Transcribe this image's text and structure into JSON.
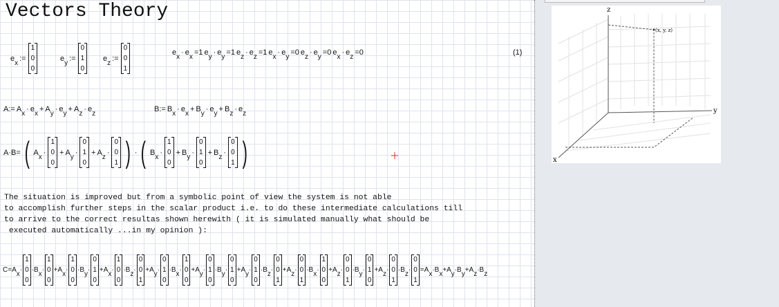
{
  "title": "Vectors Theory",
  "definitions": [
    [
      {
        "base": "e",
        "sub": "x"
      },
      ":=",
      {
        "matrix": [
          "1",
          "0",
          "0"
        ]
      }
    ],
    [
      {
        "base": "e",
        "sub": "y"
      },
      ":=",
      {
        "matrix": [
          "0",
          "1",
          "0"
        ]
      }
    ],
    [
      {
        "base": "e",
        "sub": "z"
      },
      ":=",
      {
        "matrix": [
          "0",
          "0",
          "1"
        ]
      }
    ]
  ],
  "dot_products": [
    {
      "base": "e",
      "sub": "x"
    },
    "·",
    {
      "base": "e",
      "sub": "x"
    },
    "=1",
    {
      "base": "e",
      "sub": "y"
    },
    "·",
    {
      "base": "e",
      "sub": "y"
    },
    "=1",
    {
      "base": "e",
      "sub": "z"
    },
    "·",
    {
      "base": "e",
      "sub": "z"
    },
    "=1",
    {
      "base": "e",
      "sub": "x"
    },
    "·",
    {
      "base": "e",
      "sub": "y"
    },
    "=0",
    {
      "base": "e",
      "sub": "z"
    },
    "·",
    {
      "base": "e",
      "sub": "y"
    },
    "=0",
    {
      "base": "e",
      "sub": "x"
    },
    "·",
    {
      "base": "e",
      "sub": "z"
    },
    "=0"
  ],
  "equation_number": "(1)",
  "a_definition": [
    "A:=",
    {
      "base": "A",
      "sub": "x"
    },
    "·",
    {
      "base": "e",
      "sub": "x"
    },
    "+",
    {
      "base": "A",
      "sub": "y"
    },
    "·",
    {
      "base": "e",
      "sub": "y"
    },
    "+",
    {
      "base": "A",
      "sub": "z"
    },
    "·",
    {
      "base": "e",
      "sub": "z"
    }
  ],
  "b_definition": [
    "B:=",
    {
      "base": "B",
      "sub": "x"
    },
    "·",
    {
      "base": "e",
      "sub": "x"
    },
    "+",
    {
      "base": "B",
      "sub": "y"
    },
    "·",
    {
      "base": "e",
      "sub": "y"
    },
    "+",
    {
      "base": "B",
      "sub": "z"
    },
    "·",
    {
      "base": "e",
      "sub": "z"
    }
  ],
  "ab_expression": [
    "A·B=",
    "(",
    {
      "base": "A",
      "sub": "x"
    },
    "·",
    {
      "matrix": [
        "1",
        "0",
        "0"
      ]
    },
    "+",
    {
      "base": "A",
      "sub": "y"
    },
    "·",
    {
      "matrix": [
        "0",
        "1",
        "0"
      ]
    },
    "+",
    {
      "base": "A",
      "sub": "z"
    },
    "·",
    {
      "matrix": [
        "0",
        "0",
        "1"
      ]
    },
    ")",
    "·",
    "(",
    {
      "base": "B",
      "sub": "x"
    },
    "·",
    {
      "matrix": [
        "1",
        "0",
        "0"
      ]
    },
    "+",
    {
      "base": "B",
      "sub": "y"
    },
    "·",
    {
      "matrix": [
        "0",
        "1",
        "0"
      ]
    },
    "+",
    {
      "base": "B",
      "sub": "z"
    },
    "·",
    {
      "matrix": [
        "0",
        "0",
        "1"
      ]
    },
    ")"
  ],
  "paragraph": [
    "The situation is improved but from a symbolic point of view the system is not able",
    "to accomplish further steps in the scalar product i.e. to do these intermediate calculations till",
    "to arrive to the correct resultas shown herewith ( it is simulated manually what should be",
    " executed automatically ...in my opinion ):"
  ],
  "c_expression": [
    "C=",
    {
      "base": "A",
      "sub": "x"
    },
    "·",
    {
      "matrix": [
        "1",
        "0",
        "0"
      ]
    },
    "·",
    {
      "base": "B",
      "sub": "x"
    },
    "·",
    {
      "matrix": [
        "1",
        "0",
        "0"
      ]
    },
    "+",
    {
      "base": "A",
      "sub": "x"
    },
    "·",
    {
      "matrix": [
        "1",
        "0",
        "0"
      ]
    },
    "·",
    {
      "base": "B",
      "sub": "y"
    },
    "·",
    {
      "matrix": [
        "0",
        "1",
        "0"
      ]
    },
    "+",
    {
      "base": "A",
      "sub": "x"
    },
    "·",
    {
      "matrix": [
        "1",
        "0",
        "0"
      ]
    },
    "·",
    {
      "base": "B",
      "sub": "z"
    },
    "·",
    {
      "matrix": [
        "0",
        "0",
        "1"
      ]
    },
    "+",
    {
      "base": "A",
      "sub": "y"
    },
    "·",
    {
      "matrix": [
        "0",
        "1",
        "0"
      ]
    },
    "·",
    {
      "base": "B",
      "sub": "x"
    },
    "·",
    {
      "matrix": [
        "1",
        "0",
        "0"
      ]
    },
    "+",
    {
      "base": "A",
      "sub": "y"
    },
    "·",
    {
      "matrix": [
        "0",
        "1",
        "0"
      ]
    },
    "·",
    {
      "base": "B",
      "sub": "y"
    },
    "·",
    {
      "matrix": [
        "0",
        "1",
        "0"
      ]
    },
    "+",
    {
      "base": "A",
      "sub": "y"
    },
    "·",
    {
      "matrix": [
        "0",
        "1",
        "0"
      ]
    },
    "·",
    {
      "base": "B",
      "sub": "z"
    },
    "·",
    {
      "matrix": [
        "0",
        "0",
        "1"
      ]
    },
    "+",
    {
      "base": "A",
      "sub": "z"
    },
    "·",
    {
      "matrix": [
        "0",
        "0",
        "1"
      ]
    },
    "·",
    {
      "base": "B",
      "sub": "x"
    },
    "·",
    {
      "matrix": [
        "1",
        "0",
        "0"
      ]
    },
    "+",
    {
      "base": "A",
      "sub": "z"
    },
    "·",
    {
      "matrix": [
        "0",
        "0",
        "1"
      ]
    },
    "·",
    {
      "base": "B",
      "sub": "y"
    },
    "·",
    {
      "matrix": [
        "0",
        "1",
        "0"
      ]
    },
    "+",
    {
      "base": "A",
      "sub": "z"
    },
    "·",
    {
      "matrix": [
        "0",
        "0",
        "1"
      ]
    },
    "·",
    {
      "base": "B",
      "sub": "z"
    },
    "·",
    {
      "matrix": [
        "0",
        "0",
        "1"
      ]
    },
    "=",
    {
      "base": "A",
      "sub": "x"
    },
    "·",
    {
      "base": "B",
      "sub": "x"
    },
    "+",
    {
      "base": "A",
      "sub": "y"
    },
    "·",
    {
      "base": "B",
      "sub": "y"
    },
    "+",
    {
      "base": "A",
      "sub": "z"
    },
    "·",
    {
      "base": "B",
      "sub": "z"
    }
  ],
  "plot": {
    "z_label": "z",
    "y_label": "y",
    "x_label": "x",
    "point_label": "(x, y, z)"
  }
}
